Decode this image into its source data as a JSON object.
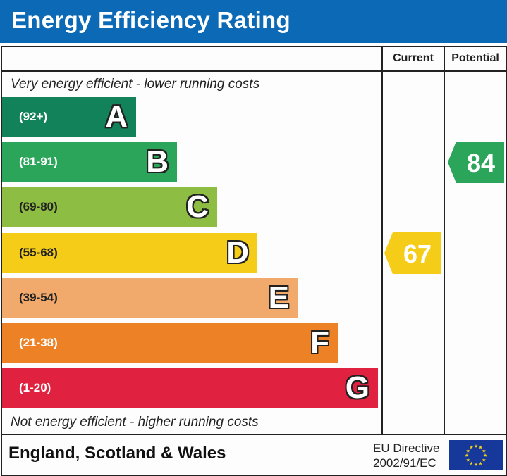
{
  "header": {
    "title": "Energy Efficiency Rating"
  },
  "columns": {
    "current": "Current",
    "potential": "Potential"
  },
  "notes": {
    "top": "Very energy efficient - lower running costs",
    "bottom": "Not energy efficient - higher running costs"
  },
  "footer": {
    "country": "England, Scotland & Wales",
    "directive_line1": "EU Directive",
    "directive_line2": "2002/91/EC",
    "flag_icon": "eu-flag-icon"
  },
  "chart_data": {
    "type": "bar",
    "bands": [
      {
        "letter": "A",
        "range": "(92+)",
        "color": "#12825a"
      },
      {
        "letter": "B",
        "range": "(81-91)",
        "color": "#2aa55a"
      },
      {
        "letter": "C",
        "range": "(69-80)",
        "color": "#8dbd42"
      },
      {
        "letter": "D",
        "range": "(55-68)",
        "color": "#f5cc17"
      },
      {
        "letter": "E",
        "range": "(39-54)",
        "color": "#f2aa6c"
      },
      {
        "letter": "F",
        "range": "(21-38)",
        "color": "#ec8126"
      },
      {
        "letter": "G",
        "range": "(1-20)",
        "color": "#e0213f"
      }
    ],
    "current": {
      "value": 67,
      "band": "D",
      "color": "#f5cc17"
    },
    "potential": {
      "value": 84,
      "band": "B",
      "color": "#2aa55a"
    }
  }
}
